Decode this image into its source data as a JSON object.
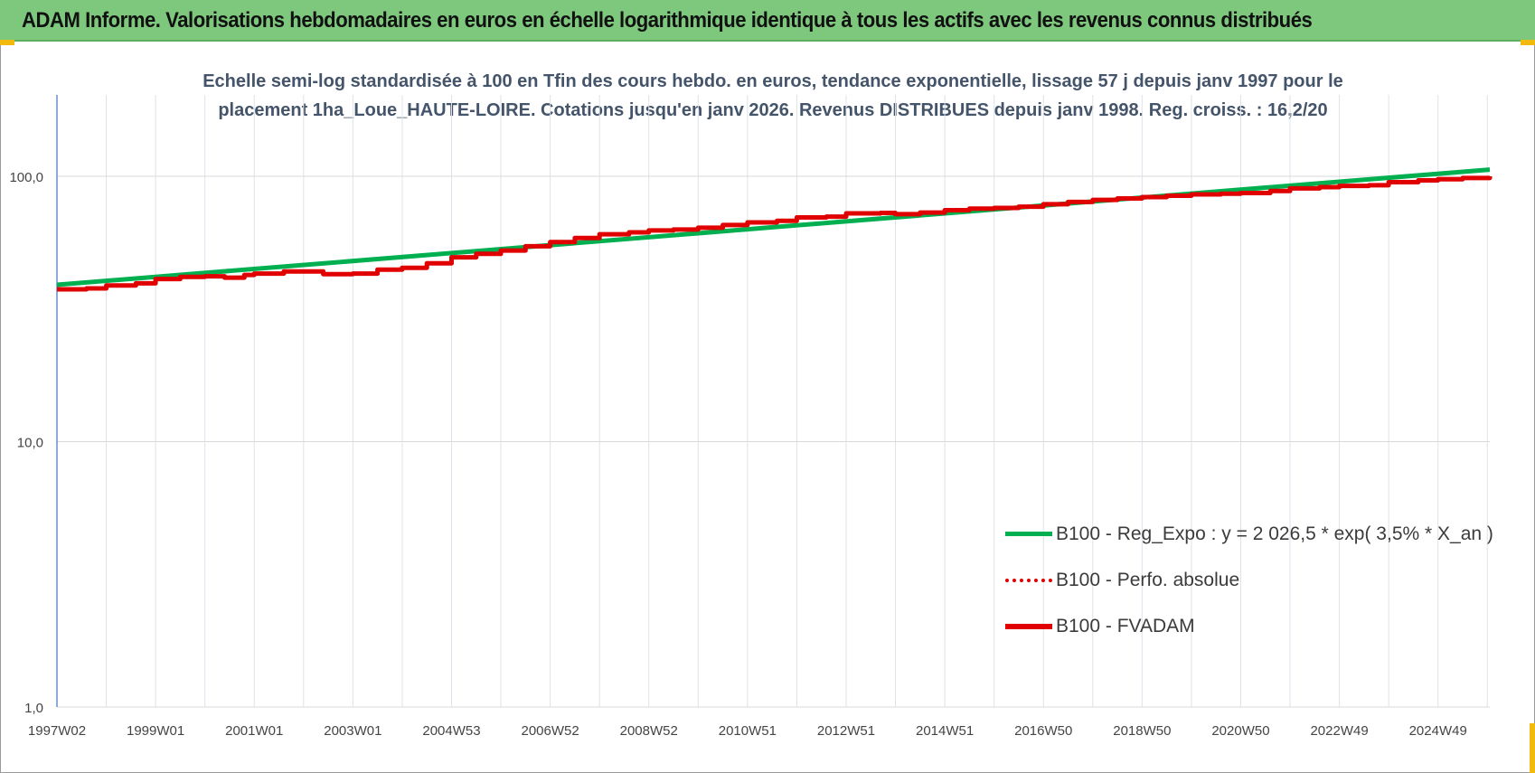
{
  "header": {
    "title": "ADAM Informe. Valorisations hebdomadaires en euros en échelle logarithmique identique à tous les actifs avec les revenus connus distribués",
    "bg_color": "#7dc87c"
  },
  "chart_data": {
    "type": "line",
    "title": "Echelle semi-log standardisée à 100 en Tfin des cours hebdo. en euros, tendance exponentielle, lissage 57 j depuis janv 1997 pour le placement 1ha_Loue_HAUTE-LOIRE. Cotations jusqu'en janv 2026. Revenus DISTRIBUES depuis janv 1998. Reg. croiss. : 16,2/20",
    "title_lines": [
      "Echelle semi-log standardisée à 100 en Tfin des cours hebdo. en euros, tendance exponentielle, lissage 57 j depuis janv 1997 pour le",
      "placement 1ha_Loue_HAUTE-LOIRE. Cotations jusqu'en janv 2026. Revenus DISTRIBUES depuis janv 1998. Reg. croiss. : 16,2/20"
    ],
    "y_scale": "log",
    "ylim": [
      1,
      200
    ],
    "y_ticks": [
      {
        "value": 1,
        "label": "1,0"
      },
      {
        "value": 10,
        "label": "10,0"
      },
      {
        "value": 100,
        "label": "100,0"
      }
    ],
    "x_range": [
      1997.0,
      2026.05
    ],
    "x_ticks": [
      {
        "value": 1997.0,
        "label": "1997W02"
      },
      {
        "value": 1999.0,
        "label": "1999W01"
      },
      {
        "value": 2001.0,
        "label": "2001W01"
      },
      {
        "value": 2003.0,
        "label": "2003W01"
      },
      {
        "value": 2005.0,
        "label": "2004W53"
      },
      {
        "value": 2007.0,
        "label": "2006W52"
      },
      {
        "value": 2009.0,
        "label": "2008W52"
      },
      {
        "value": 2011.0,
        "label": "2010W51"
      },
      {
        "value": 2013.0,
        "label": "2012W51"
      },
      {
        "value": 2015.0,
        "label": "2014W51"
      },
      {
        "value": 2017.0,
        "label": "2016W50"
      },
      {
        "value": 2019.0,
        "label": "2018W50"
      },
      {
        "value": 2021.0,
        "label": "2020W50"
      },
      {
        "value": 2023.0,
        "label": "2022W49"
      },
      {
        "value": 2025.0,
        "label": "2024W49"
      }
    ],
    "grid": true,
    "legend_position": "bottom-right",
    "series": [
      {
        "name": "B100 - Reg_Expo : y = 2 026,5 * exp( 3,5% *  X_an )",
        "color": "#00b050",
        "style": "solid",
        "points": [
          [
            1997.0,
            39.0
          ],
          [
            2026.05,
            106.0
          ]
        ]
      },
      {
        "name": "B100 - Perfo. absolue",
        "color": "#e00000",
        "style": "dotted",
        "points": []
      },
      {
        "name": "B100 - FVADAM",
        "color": "#e00000",
        "style": "solid",
        "points": [
          [
            1997.0,
            37.5
          ],
          [
            1997.6,
            37.8
          ],
          [
            1998.0,
            38.8
          ],
          [
            1998.6,
            39.5
          ],
          [
            1999.0,
            41.0
          ],
          [
            1999.5,
            41.8
          ],
          [
            2000.0,
            42.0
          ],
          [
            2000.4,
            41.5
          ],
          [
            2000.8,
            42.5
          ],
          [
            2001.0,
            43.0
          ],
          [
            2001.6,
            43.8
          ],
          [
            2002.0,
            43.8
          ],
          [
            2002.4,
            42.8
          ],
          [
            2003.0,
            43.0
          ],
          [
            2003.5,
            44.5
          ],
          [
            2004.0,
            45.2
          ],
          [
            2004.5,
            47.0
          ],
          [
            2005.0,
            49.5
          ],
          [
            2005.5,
            51.0
          ],
          [
            2006.0,
            52.5
          ],
          [
            2006.5,
            54.5
          ],
          [
            2007.0,
            56.5
          ],
          [
            2007.5,
            58.5
          ],
          [
            2008.0,
            60.5
          ],
          [
            2008.6,
            61.5
          ],
          [
            2009.0,
            62.5
          ],
          [
            2009.5,
            63.0
          ],
          [
            2010.0,
            64.0
          ],
          [
            2010.5,
            65.5
          ],
          [
            2011.0,
            67.0
          ],
          [
            2011.6,
            68.0
          ],
          [
            2012.0,
            70.0
          ],
          [
            2012.6,
            70.5
          ],
          [
            2013.0,
            72.5
          ],
          [
            2013.7,
            72.8
          ],
          [
            2014.0,
            72.0
          ],
          [
            2014.5,
            73.0
          ],
          [
            2015.0,
            74.5
          ],
          [
            2015.5,
            75.5
          ],
          [
            2016.0,
            76.0
          ],
          [
            2016.5,
            76.8
          ],
          [
            2017.0,
            78.5
          ],
          [
            2017.5,
            80.0
          ],
          [
            2018.0,
            81.5
          ],
          [
            2018.5,
            82.5
          ],
          [
            2019.0,
            83.5
          ],
          [
            2019.5,
            84.5
          ],
          [
            2020.0,
            85.5
          ],
          [
            2020.6,
            86.0
          ],
          [
            2021.0,
            86.5
          ],
          [
            2021.6,
            88.0
          ],
          [
            2022.0,
            90.0
          ],
          [
            2022.6,
            91.0
          ],
          [
            2023.0,
            92.0
          ],
          [
            2023.6,
            92.5
          ],
          [
            2024.0,
            95.0
          ],
          [
            2024.6,
            96.5
          ],
          [
            2025.0,
            97.5
          ],
          [
            2025.5,
            98.5
          ],
          [
            2026.05,
            100.0
          ]
        ]
      }
    ]
  }
}
